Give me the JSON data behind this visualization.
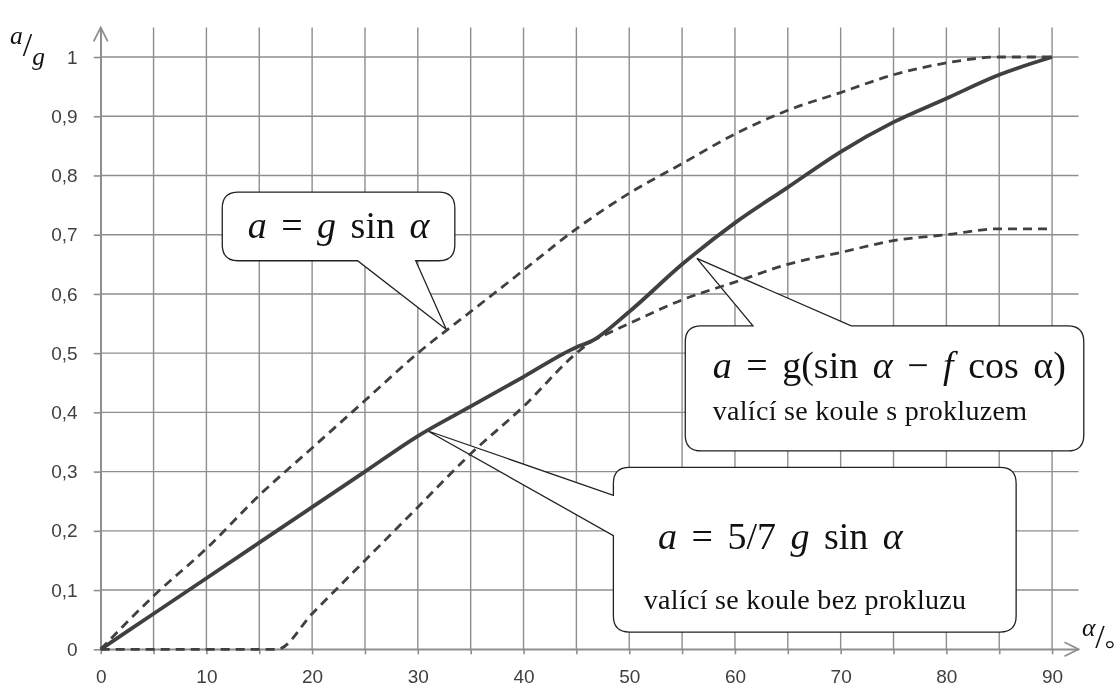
{
  "chart_data": {
    "type": "line",
    "xlabel": "α/°",
    "ylabel": "a/g",
    "xlim": [
      0,
      92.5
    ],
    "xticks": [
      0,
      {
        "value": 5,
        "label": null
      },
      10,
      {
        "value": 15,
        "label": null
      },
      20,
      {
        "value": 25,
        "label": null
      },
      30,
      {
        "value": 35,
        "label": null
      },
      40,
      {
        "value": 45,
        "label": null
      },
      50,
      {
        "value": 55,
        "label": null
      },
      60,
      {
        "value": 65,
        "label": null
      },
      70,
      {
        "value": 75,
        "label": null
      },
      80,
      {
        "value": 85,
        "label": null
      },
      90
    ],
    "ylim": [
      0,
      1.05
    ],
    "yticks": [
      0,
      {
        "value": 0.1,
        "label": "0,1"
      },
      {
        "value": 0.2,
        "label": "0,2"
      },
      {
        "value": 0.3,
        "label": "0,3"
      },
      {
        "value": 0.4,
        "label": "0,4"
      },
      {
        "value": 0.5,
        "label": "0,5"
      },
      {
        "value": 0.6,
        "label": "0,6"
      },
      {
        "value": 0.7,
        "label": "0,7"
      },
      {
        "value": 0.8,
        "label": "0,8"
      },
      {
        "value": 0.9,
        "label": "0,9"
      },
      1
    ],
    "grid": true,
    "series": [
      {
        "color": "#404040",
        "line_style": "dashed",
        "x": [
          0,
          5,
          10,
          15,
          20,
          25,
          30,
          35,
          40,
          45,
          50,
          55,
          60,
          65,
          70,
          75,
          80,
          85,
          90
        ],
        "values": [
          0,
          0.09,
          0.17,
          0.26,
          0.34,
          0.42,
          0.5,
          0.57,
          0.64,
          0.71,
          0.77,
          0.82,
          0.87,
          0.91,
          0.94,
          0.97,
          0.99,
          1,
          1
        ]
      },
      {
        "color": "#404040",
        "line_style": "dashed",
        "x": [
          46.4,
          50,
          55,
          60,
          65,
          70,
          75,
          80,
          85,
          90
        ],
        "values": [
          0.52,
          0.55,
          0.59,
          0.62,
          0.65,
          0.67,
          0.69,
          0.7,
          0.71,
          0.71
        ]
      },
      {
        "color": "#404040",
        "line_style": "dashed",
        "x": [
          0,
          16.7,
          20,
          25,
          30,
          35,
          40,
          45,
          46.4
        ],
        "values": [
          0,
          0,
          0.06,
          0.15,
          0.24,
          0.33,
          0.41,
          0.5,
          0.52
        ]
      },
      {
        "color": "#404040",
        "line_style": "solid",
        "x": [
          0,
          5,
          10,
          15,
          20,
          25,
          30,
          35,
          40,
          45,
          46.4,
          50,
          55,
          60,
          65,
          70,
          75,
          80,
          85,
          90
        ],
        "values": [
          0,
          0.06,
          0.12,
          0.18,
          0.24,
          0.3,
          0.36,
          0.41,
          0.46,
          0.51,
          0.52,
          0.57,
          0.65,
          0.72,
          0.78,
          0.84,
          0.89,
          0.93,
          0.97,
          1
        ]
      }
    ],
    "annotations": [
      {
        "text": "a = g sin α",
        "x": 32.7,
        "y": 0.54
      },
      {
        "text": "a = g(sin α − f cos α)",
        "x": 56.4,
        "y": 0.66
      },
      "valící se koule s prokluzem",
      "a = 5/7 g sin α",
      "valící se koule bez prokluzu"
    ]
  }
}
